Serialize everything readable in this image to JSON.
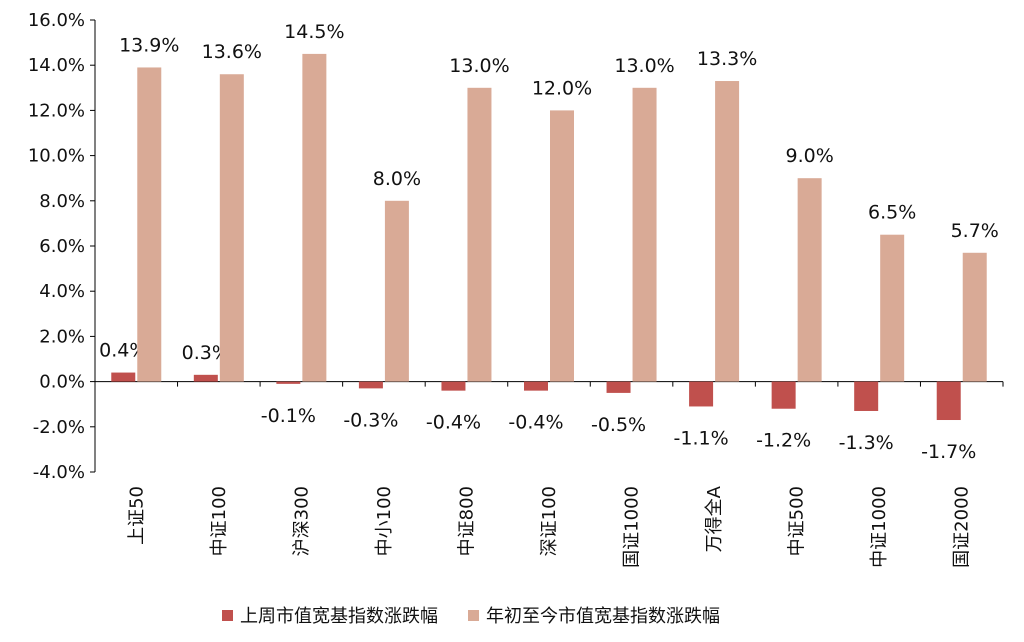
{
  "chart_data": {
    "type": "bar",
    "categories": [
      "上证50",
      "中证100",
      "沪深300",
      "中小100",
      "中证800",
      "深证100",
      "国证1000",
      "万得全A",
      "中证500",
      "中证1000",
      "国证2000"
    ],
    "series": [
      {
        "name": "上周市值宽基指数涨跌幅",
        "color": "#c0504d",
        "values": [
          0.4,
          0.3,
          -0.1,
          -0.3,
          -0.4,
          -0.4,
          -0.5,
          -1.1,
          -1.2,
          -1.3,
          -1.7
        ],
        "labels": [
          "0.4%",
          "0.3%",
          "-0.1%",
          "-0.3%",
          "-0.4%",
          "-0.4%",
          "-0.5%",
          "-1.1%",
          "-1.2%",
          "-1.3%",
          "-1.7%"
        ]
      },
      {
        "name": "年初至今市值宽基指数涨跌幅",
        "color": "#d9aa96",
        "values": [
          13.9,
          13.6,
          14.5,
          8.0,
          13.0,
          12.0,
          13.0,
          13.3,
          9.0,
          6.5,
          5.7
        ],
        "labels": [
          "13.9%",
          "13.6%",
          "14.5%",
          "8.0%",
          "13.0%",
          "12.0%",
          "13.0%",
          "13.3%",
          "9.0%",
          "6.5%",
          "5.7%"
        ]
      }
    ],
    "ylim": [
      -4,
      16
    ],
    "ytick_labels": [
      "-4.0%",
      "-2.0%",
      "0.0%",
      "2.0%",
      "4.0%",
      "6.0%",
      "8.0%",
      "10.0%",
      "12.0%",
      "14.0%",
      "16.0%"
    ],
    "title": "",
    "xlabel": "",
    "ylabel": "",
    "grid": false,
    "legend_position": "bottom"
  }
}
